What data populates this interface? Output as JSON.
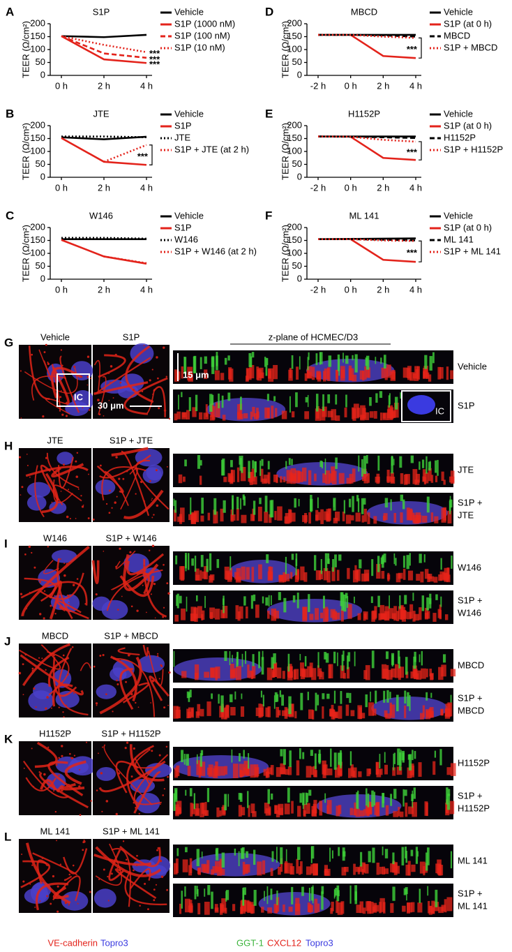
{
  "chart_data": [
    {
      "type": "line",
      "panel": "A",
      "title": "S1P",
      "y_label": "TEER (Ω/cm²)",
      "categories": [
        "0 h",
        "2 h",
        "4 h"
      ],
      "series": [
        {
          "name": "Vehicle",
          "color": "#000000",
          "dash": "solid",
          "values": [
            152,
            148,
            157
          ]
        },
        {
          "name": "S1P (1000 nM)",
          "color": "#e3231b",
          "dash": "solid",
          "values": [
            152,
            62,
            48
          ]
        },
        {
          "name": "S1P (100 nM)",
          "color": "#e3231b",
          "dash": "dashed",
          "values": [
            152,
            85,
            68
          ]
        },
        {
          "name": "S1P (10 nM)",
          "color": "#e3231b",
          "dash": "dotted",
          "values": [
            152,
            118,
            90
          ]
        }
      ],
      "ylim": [
        0,
        200
      ],
      "yticks": [
        0,
        50,
        100,
        150,
        200
      ],
      "annotations": [
        "***",
        "***",
        "***"
      ]
    },
    {
      "type": "line",
      "panel": "B",
      "title": "JTE",
      "y_label": "TEER (Ω/cm²)",
      "categories": [
        "0 h",
        "2 h",
        "4 h"
      ],
      "series": [
        {
          "name": "Vehicle",
          "color": "#000000",
          "dash": "solid",
          "values": [
            155,
            147,
            157
          ]
        },
        {
          "name": "S1P",
          "color": "#e3231b",
          "dash": "solid",
          "values": [
            152,
            60,
            48
          ]
        },
        {
          "name": "JTE",
          "color": "#000000",
          "dash": "dotted",
          "values": [
            158,
            158,
            155
          ]
        },
        {
          "name": "S1P + JTE (at 2 h)",
          "color": "#e3231b",
          "dash": "dotted",
          "values": [
            null,
            60,
            125
          ]
        }
      ],
      "ylim": [
        0,
        200
      ],
      "yticks": [
        0,
        50,
        100,
        150,
        200
      ],
      "annotations": [
        "***"
      ]
    },
    {
      "type": "line",
      "panel": "C",
      "title": "W146",
      "y_label": "TEER (Ω/cm²)",
      "categories": [
        "0 h",
        "2 h",
        "4 h"
      ],
      "series": [
        {
          "name": "Vehicle",
          "color": "#000000",
          "dash": "solid",
          "values": [
            155,
            155,
            155
          ]
        },
        {
          "name": "S1P",
          "color": "#e3231b",
          "dash": "solid",
          "values": [
            152,
            88,
            60
          ]
        },
        {
          "name": "W146",
          "color": "#000000",
          "dash": "dotted",
          "values": [
            160,
            160,
            157
          ]
        },
        {
          "name": "S1P + W146 (at 2 h)",
          "color": "#e3231b",
          "dash": "dotted",
          "values": [
            null,
            88,
            62
          ]
        }
      ],
      "ylim": [
        0,
        200
      ],
      "yticks": [
        0,
        50,
        100,
        150,
        200
      ],
      "annotations": []
    },
    {
      "type": "line",
      "panel": "D",
      "title": "MBCD",
      "y_label": "TEER (Ω/cm²)",
      "categories": [
        "-2 h",
        "0 h",
        "2 h",
        "4 h"
      ],
      "series": [
        {
          "name": "Vehicle",
          "color": "#000000",
          "dash": "solid",
          "values": [
            157,
            157,
            157,
            157
          ]
        },
        {
          "name": "S1P (at 0 h)",
          "color": "#e3231b",
          "dash": "solid",
          "values": [
            null,
            157,
            75,
            67
          ]
        },
        {
          "name": "MBCD",
          "color": "#000000",
          "dash": "dashed",
          "values": [
            157,
            157,
            155,
            150
          ]
        },
        {
          "name": "S1P + MBCD",
          "color": "#e3231b",
          "dash": "dotted",
          "values": [
            157,
            157,
            150,
            145
          ]
        }
      ],
      "ylim": [
        0,
        200
      ],
      "yticks": [
        0,
        50,
        100,
        150,
        200
      ],
      "annotations": [
        "***"
      ]
    },
    {
      "type": "line",
      "panel": "E",
      "title": "H1152P",
      "y_label": "TEER (Ω/cm²)",
      "categories": [
        "-2 h",
        "0 h",
        "2 h",
        "4 h"
      ],
      "series": [
        {
          "name": "Vehicle",
          "color": "#000000",
          "dash": "solid",
          "values": [
            158,
            158,
            158,
            158
          ]
        },
        {
          "name": "S1P (at 0 h)",
          "color": "#e3231b",
          "dash": "solid",
          "values": [
            null,
            157,
            75,
            67
          ]
        },
        {
          "name": "H1152P",
          "color": "#000000",
          "dash": "dashed",
          "values": [
            158,
            157,
            155,
            152
          ]
        },
        {
          "name": "S1P + H1152P",
          "color": "#e3231b",
          "dash": "dotted",
          "values": [
            158,
            157,
            145,
            138
          ]
        }
      ],
      "ylim": [
        0,
        200
      ],
      "yticks": [
        0,
        50,
        100,
        150,
        200
      ],
      "annotations": [
        "***"
      ]
    },
    {
      "type": "line",
      "panel": "F",
      "title": "ML 141",
      "y_label": "TEER (Ω/cm²)",
      "categories": [
        "-2 h",
        "0 h",
        "2 h",
        "4 h"
      ],
      "series": [
        {
          "name": "Vehicle",
          "color": "#000000",
          "dash": "solid",
          "values": [
            155,
            156,
            157,
            158
          ]
        },
        {
          "name": "S1P (at 0 h)",
          "color": "#e3231b",
          "dash": "solid",
          "values": [
            null,
            155,
            75,
            67
          ]
        },
        {
          "name": "ML 141",
          "color": "#000000",
          "dash": "dashed",
          "values": [
            155,
            155,
            153,
            150
          ]
        },
        {
          "name": "S1P + ML 141",
          "color": "#e3231b",
          "dash": "dotted",
          "values": [
            155,
            155,
            150,
            148
          ]
        }
      ],
      "ylim": [
        0,
        200
      ],
      "yticks": [
        0,
        50,
        100,
        150,
        200
      ],
      "annotations": [
        "***"
      ]
    }
  ],
  "panels": [
    {
      "letter": "G",
      "image_labels": [
        "Vehicle",
        "S1P"
      ],
      "strip_labels": [
        [
          "Vehicle"
        ],
        [
          "S1P"
        ]
      ]
    },
    {
      "letter": "H",
      "image_labels": [
        "JTE",
        "S1P + JTE"
      ],
      "strip_labels": [
        [
          "JTE"
        ],
        [
          "S1P +",
          "JTE"
        ]
      ]
    },
    {
      "letter": "I",
      "image_labels": [
        "W146",
        "S1P + W146"
      ],
      "strip_labels": [
        [
          "W146"
        ],
        [
          "S1P +",
          "W146"
        ]
      ]
    },
    {
      "letter": "J",
      "image_labels": [
        "MBCD",
        "S1P + MBCD"
      ],
      "strip_labels": [
        [
          "MBCD"
        ],
        [
          "S1P +",
          "MBCD"
        ]
      ]
    },
    {
      "letter": "K",
      "image_labels": [
        "H1152P",
        "S1P + H1152P"
      ],
      "strip_labels": [
        [
          "H1152P"
        ],
        [
          "S1P +",
          "H1152P"
        ]
      ]
    },
    {
      "letter": "L",
      "image_labels": [
        "ML 141",
        "S1P + ML 141"
      ],
      "strip_labels": [
        [
          "ML 141"
        ],
        [
          "S1P +",
          "ML 141"
        ]
      ]
    }
  ],
  "panel_g": {
    "z_plane": "z-plane of HCMEC/D3",
    "scale_z": "15 μm",
    "scale_xy": "30 μm",
    "inset": "IC"
  },
  "stain_left": [
    "VE-cadherin",
    "Topro3"
  ],
  "stain_right": [
    "GGT-1",
    "CXCL12",
    "Topro3"
  ]
}
